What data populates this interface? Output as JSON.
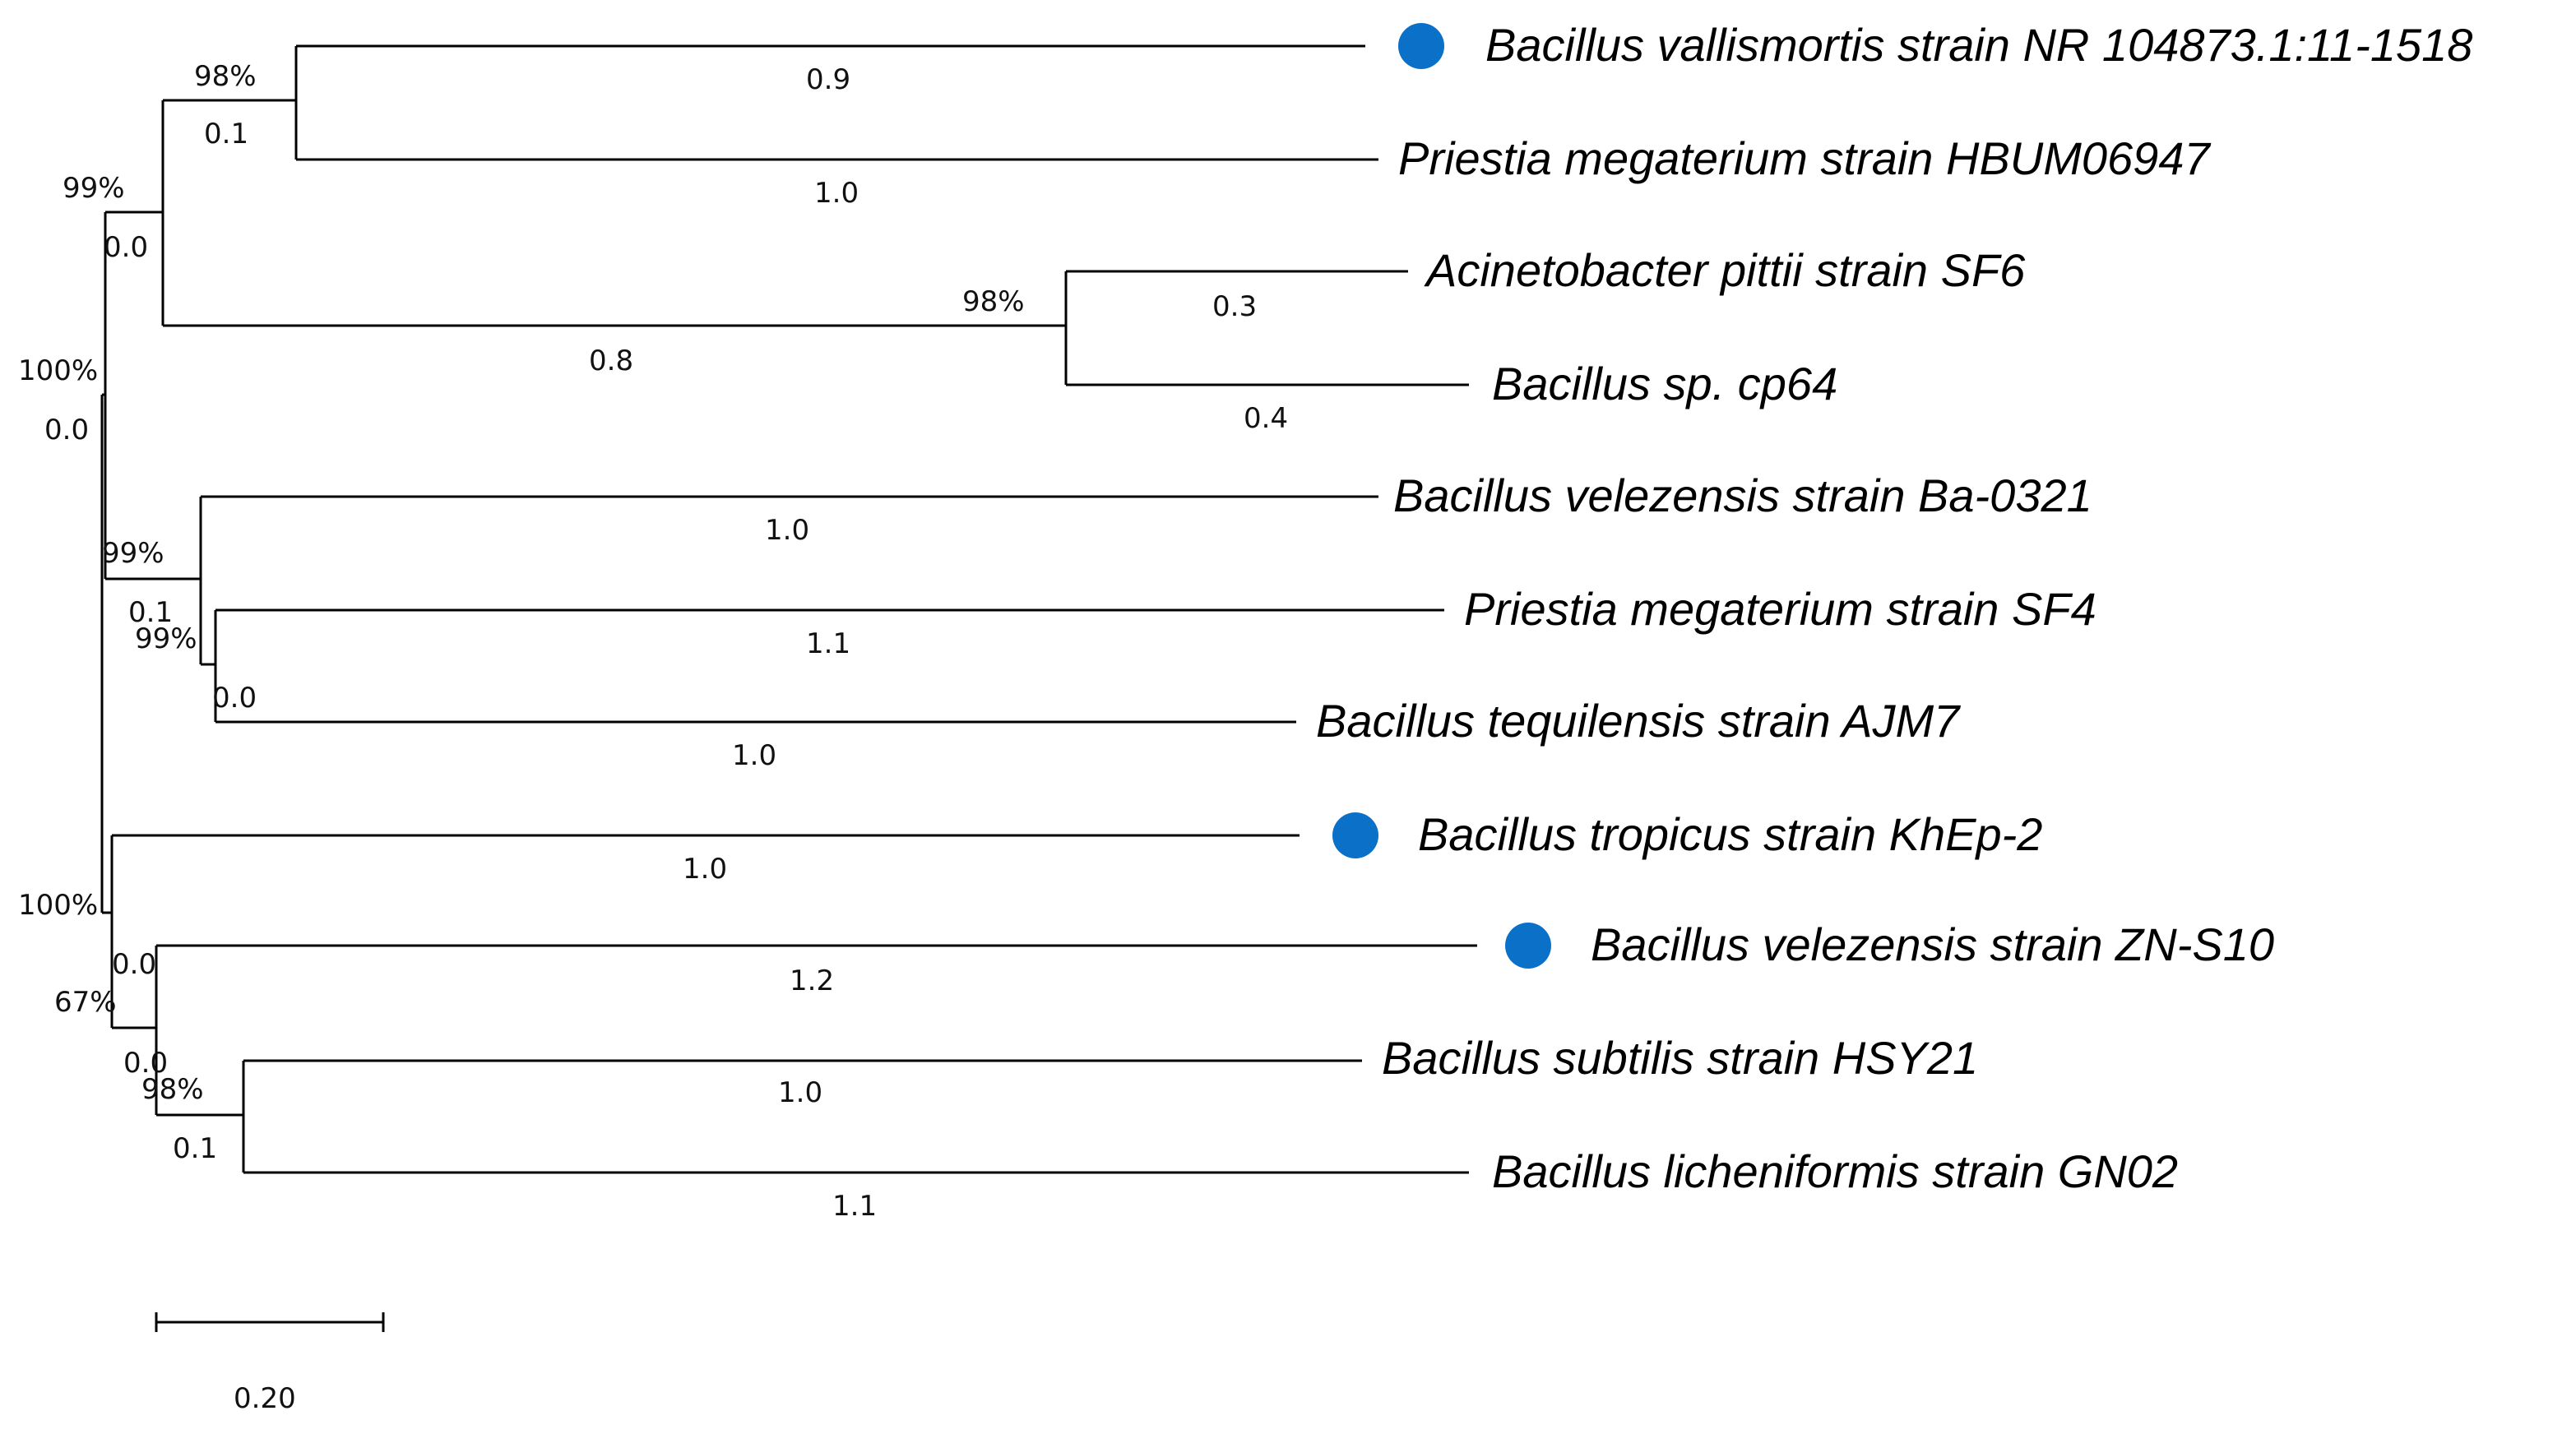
{
  "taxa": [
    {
      "label": "Bacillus vallismortis strain NR 104873.1:11-1518",
      "marked": true
    },
    {
      "label": "Priestia megaterium strain HBUM06947",
      "marked": false
    },
    {
      "label": "Acinetobacter pittii strain SF6",
      "marked": false
    },
    {
      "label": "Bacillus sp. cp64",
      "marked": false
    },
    {
      "label": "Bacillus velezensis strain Ba-0321",
      "marked": false
    },
    {
      "label": "Priestia megaterium strain SF4",
      "marked": false
    },
    {
      "label": "Bacillus tequilensis strain AJM7",
      "marked": false
    },
    {
      "label": "Bacillus tropicus strain KhEp-2",
      "marked": true
    },
    {
      "label": "Bacillus velezensis strain ZN-S10",
      "marked": true
    },
    {
      "label": "Bacillus subtilis strain HSY21",
      "marked": false
    },
    {
      "label": "Bacillus licheniformis strain GN02",
      "marked": false
    }
  ],
  "tip_branch_lengths": [
    "0.9",
    "1.0",
    "0.3",
    "0.4",
    "1.0",
    "1.1",
    "1.0",
    "1.0",
    "1.2",
    "1.0",
    "1.1"
  ],
  "internal_nodes": [
    {
      "id": "vallis_megat",
      "bootstrap": "98%",
      "branch": "0.1"
    },
    {
      "id": "acin_cp64",
      "bootstrap": "98%",
      "branch": "0.8"
    },
    {
      "id": "upper_clade",
      "bootstrap": "99%",
      "branch": "0.0"
    },
    {
      "id": "root",
      "bootstrap": "100%",
      "branch": "0.0"
    },
    {
      "id": "velez_clade",
      "bootstrap": "99%",
      "branch": "0.1"
    },
    {
      "id": "sf4_ajm7",
      "bootstrap": "99%",
      "branch": "0.0"
    },
    {
      "id": "lower_clade",
      "bootstrap": "100%",
      "branch": "0.0"
    },
    {
      "id": "zn_sub_lich",
      "bootstrap": "67%",
      "branch": "0.0"
    },
    {
      "id": "sub_lich",
      "bootstrap": "98%",
      "branch": "0.1"
    }
  ],
  "scale_bar": {
    "label": "0.20"
  },
  "colors": {
    "marker": "#0a70c8",
    "lines": "#000000"
  }
}
